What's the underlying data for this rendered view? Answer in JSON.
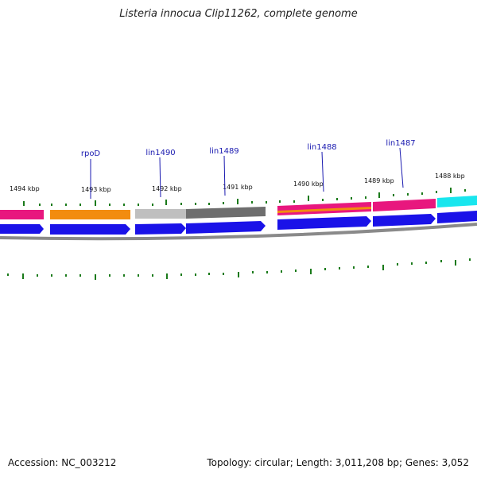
{
  "header": {
    "title": "Listeria innocua Clip11262, complete genome"
  },
  "footer": {
    "accession": "Accession: NC_003212",
    "summary": "Topology: circular; Length: 3,011,208 bp; Genes: 3,052"
  },
  "genes": [
    {
      "name": "rpoD"
    },
    {
      "name": "lin1490"
    },
    {
      "name": "lin1489"
    },
    {
      "name": "lin1488"
    },
    {
      "name": "lin1487"
    }
  ],
  "ticks": [
    {
      "label": "1494 kbp"
    },
    {
      "label": "1493 kbp"
    },
    {
      "label": "1492 kbp"
    },
    {
      "label": "1491 kbp"
    },
    {
      "label": "1490 kbp"
    },
    {
      "label": "1489 kbp"
    },
    {
      "label": "1488 kbp"
    }
  ],
  "colors": {
    "pink": "#e8177e",
    "orange": "#f28c0f",
    "light_gray": "#bfbfbf",
    "dark_gray": "#6e6e6e",
    "cyan": "#19e6ee",
    "cds_blue": "#1a12e8",
    "tick_green": "#1a7a1a",
    "label_blue": "#1a1ab0",
    "backbone": "#8a8a8a"
  }
}
